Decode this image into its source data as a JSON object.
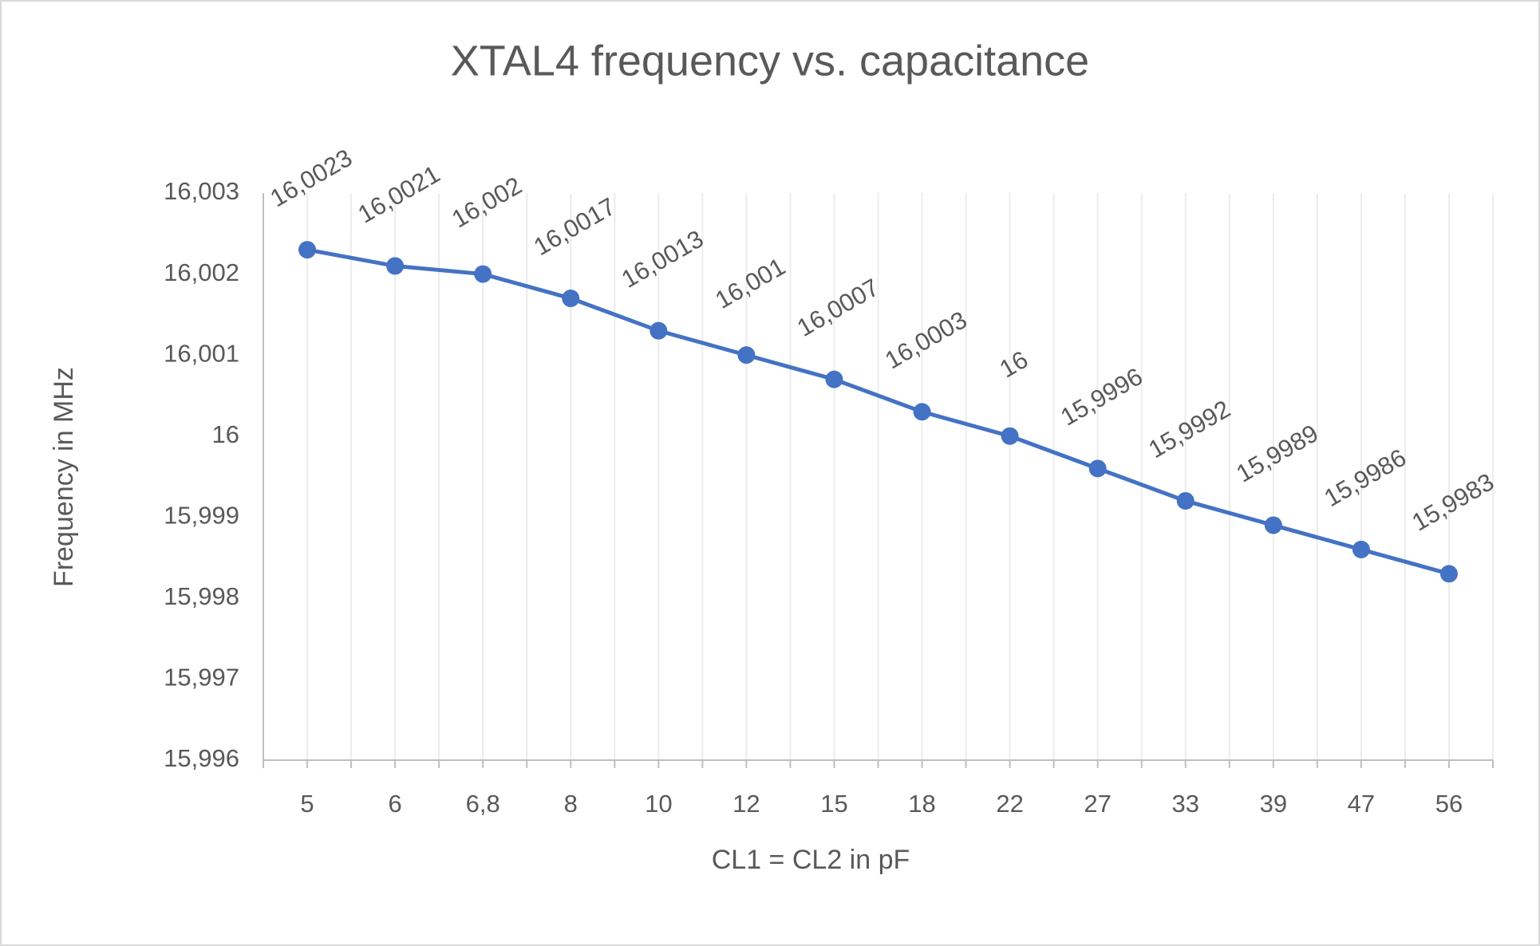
{
  "chart_data": {
    "type": "line",
    "title": "XTAL4 frequency vs. capacitance",
    "x_label": "CL1 = CL2 in pF",
    "y_label": "Frequency in MHz",
    "categories": [
      "5",
      "6",
      "6,8",
      "8",
      "10",
      "12",
      "15",
      "18",
      "22",
      "27",
      "33",
      "39",
      "47",
      "56"
    ],
    "series": [
      {
        "name": "XTAL4",
        "color": "#4472c4",
        "values": [
          16.0023,
          16.0021,
          16.002,
          16.0017,
          16.0013,
          16.001,
          16.0007,
          16.0003,
          16,
          15.9996,
          15.9992,
          15.9989,
          15.9986,
          15.9983
        ],
        "value_labels": [
          "16,0023",
          "16,0021",
          "16,002",
          "16,0017",
          "16,0013",
          "16,001",
          "16,0007",
          "16,0003",
          "16",
          "15,9996",
          "15,9992",
          "15,9989",
          "15,9986",
          "15,9983"
        ]
      }
    ],
    "ylim": [
      15.996,
      16.003
    ],
    "yticks": [
      {
        "value": 15.996,
        "label": "15,996"
      },
      {
        "value": 15.997,
        "label": "15,997"
      },
      {
        "value": 15.998,
        "label": "15,998"
      },
      {
        "value": 15.999,
        "label": "15,999"
      },
      16,
      {
        "value": 16.001,
        "label": "16,001"
      },
      {
        "value": 16.002,
        "label": "16,002"
      },
      {
        "value": 16.003,
        "label": "16,003"
      }
    ]
  }
}
